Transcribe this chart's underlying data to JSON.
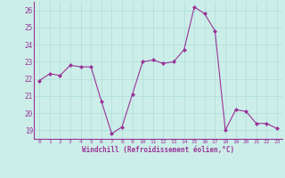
{
  "x": [
    0,
    1,
    2,
    3,
    4,
    5,
    6,
    7,
    8,
    9,
    10,
    11,
    12,
    13,
    14,
    15,
    16,
    17,
    18,
    19,
    20,
    21,
    22,
    23
  ],
  "y": [
    21.9,
    22.3,
    22.2,
    22.8,
    22.7,
    22.7,
    20.7,
    18.8,
    19.2,
    21.1,
    23.0,
    23.1,
    22.9,
    23.0,
    23.7,
    26.2,
    25.8,
    24.8,
    19.0,
    20.2,
    20.1,
    19.4,
    19.4,
    19.1
  ],
  "line_color": "#993399",
  "marker": "D",
  "marker_size": 2,
  "bg_color": "#cceee8",
  "grid_color": "#aadddd",
  "xlabel": "Windchill (Refroidissement éolien,°C)",
  "xlabel_color": "#993399",
  "tick_color": "#993399",
  "label_color": "#993399",
  "spine_color": "#993399",
  "ylim": [
    18.5,
    26.5
  ],
  "xlim": [
    -0.5,
    23.5
  ],
  "yticks": [
    19,
    20,
    21,
    22,
    23,
    24,
    25,
    26
  ],
  "xticks": [
    0,
    1,
    2,
    3,
    4,
    5,
    6,
    7,
    8,
    9,
    10,
    11,
    12,
    13,
    14,
    15,
    16,
    17,
    18,
    19,
    20,
    21,
    22,
    23
  ]
}
